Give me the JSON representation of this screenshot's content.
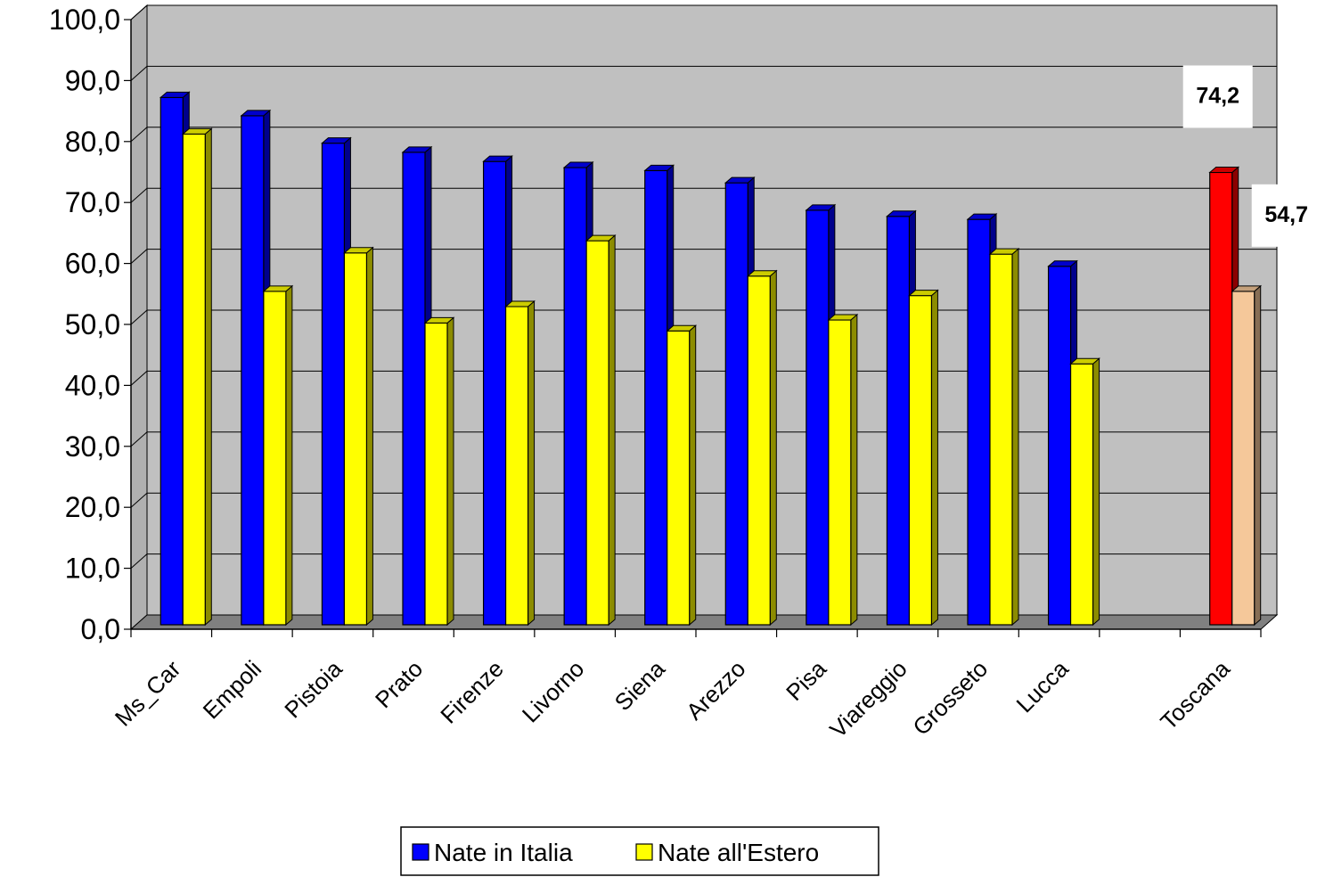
{
  "chart_data": {
    "type": "bar",
    "categories": [
      "Ms_Car",
      "Empoli",
      "Pistoia",
      "Prato",
      "Firenze",
      "Livorno",
      "Siena",
      "Arezzo",
      "Pisa",
      "Viareggio",
      "Grosseto",
      "Lucca",
      "",
      "Toscana"
    ],
    "series": [
      {
        "name": "Nate in Italia",
        "color": "#0000ff",
        "values": [
          86.5,
          83.5,
          79,
          77.5,
          76,
          75,
          74.5,
          72.5,
          68,
          67,
          66.5,
          58.8,
          null,
          74.2
        ]
      },
      {
        "name": "Nate all'Estero",
        "color": "#ffff00",
        "values": [
          80.5,
          54.7,
          61,
          49.5,
          52.2,
          63,
          48.2,
          57.2,
          50,
          54,
          60.8,
          42.8,
          null,
          54.7
        ]
      }
    ],
    "highlight": {
      "category": "Toscana",
      "colors": [
        "#ff0000",
        "#f5c89a"
      ]
    },
    "data_labels": [
      {
        "category": "Toscana",
        "series": "Nate in Italia",
        "text": "74,2"
      },
      {
        "category": "Toscana",
        "series": "Nate all'Estero",
        "text": "54,7"
      }
    ],
    "y_ticks": [
      "0,0",
      "10,0",
      "20,0",
      "30,0",
      "40,0",
      "50,0",
      "60,0",
      "70,0",
      "80,0",
      "90,0",
      "100,0"
    ],
    "ylim": [
      0,
      100
    ],
    "grid": true,
    "legend_position": "bottom"
  }
}
